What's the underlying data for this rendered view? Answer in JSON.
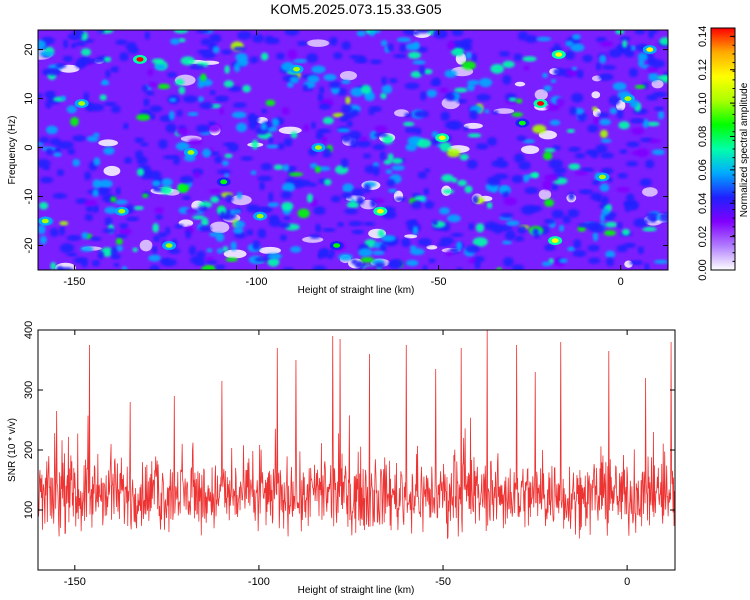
{
  "title": "KOM5.2025.073.15.33.G05",
  "chart_data": [
    {
      "type": "heatmap",
      "xlabel": "Height of straight line (km)",
      "ylabel": "Frequency (Hz)",
      "xlim": [
        -160,
        13
      ],
      "ylim": [
        -25,
        24
      ],
      "x_ticks": [
        -150,
        -100,
        -50,
        0
      ],
      "y_ticks": [
        -20,
        -10,
        0,
        10,
        20
      ],
      "colorbar": {
        "label": "Normalized spectral amplitude",
        "range": [
          0,
          0.145
        ],
        "ticks": [
          "0.00",
          "0.02",
          "0.04",
          "0.06",
          "0.08",
          "0.10",
          "0.12",
          "0.14"
        ],
        "colormap": [
          "#ffffff",
          "#b07cff",
          "#8000ff",
          "#2020ff",
          "#00aaff",
          "#00ffaa",
          "#00ff00",
          "#aaff00",
          "#ffff00",
          "#ffaa00",
          "#ff0000"
        ]
      },
      "hotspots": [
        {
          "x": -132,
          "y": 18,
          "v": 0.14
        },
        {
          "x": -22,
          "y": 9,
          "v": 0.14
        },
        {
          "x": -17,
          "y": 19,
          "v": 0.12
        },
        {
          "x": -148,
          "y": 9,
          "v": 0.1
        },
        {
          "x": -158,
          "y": -15,
          "v": 0.1
        },
        {
          "x": -118,
          "y": -1,
          "v": 0.1
        },
        {
          "x": -109,
          "y": -7,
          "v": 0.08
        },
        {
          "x": -49,
          "y": 2,
          "v": 0.12
        },
        {
          "x": -89,
          "y": 16,
          "v": 0.1
        },
        {
          "x": -83,
          "y": 0,
          "v": 0.1
        },
        {
          "x": -99,
          "y": -14,
          "v": 0.1
        },
        {
          "x": -66,
          "y": -13,
          "v": 0.12
        },
        {
          "x": -18,
          "y": -19,
          "v": 0.12
        },
        {
          "x": -27,
          "y": 5,
          "v": 0.09
        },
        {
          "x": -5,
          "y": -6,
          "v": 0.1
        },
        {
          "x": 2,
          "y": 10,
          "v": 0.1
        },
        {
          "x": -137,
          "y": -13,
          "v": 0.1
        },
        {
          "x": -124,
          "y": -20,
          "v": 0.1
        },
        {
          "x": -78,
          "y": -20,
          "v": 0.09
        },
        {
          "x": 8,
          "y": 20,
          "v": 0.11
        }
      ]
    },
    {
      "type": "line",
      "xlabel": "Height of straight line (km)",
      "ylabel": "SNR (10 * v/v)",
      "xlim": [
        -160,
        13
      ],
      "ylim": [
        0,
        400
      ],
      "x_ticks": [
        -150,
        -100,
        -50,
        0
      ],
      "y_ticks": [
        100,
        200,
        300,
        400
      ],
      "series": [
        {
          "color": "#ee3333",
          "baseline": 125,
          "spread": 65,
          "peaks": [
            {
              "x": -146,
              "y": 375
            },
            {
              "x": -95,
              "y": 370
            },
            {
              "x": -80,
              "y": 390
            },
            {
              "x": -78,
              "y": 385
            },
            {
              "x": -60,
              "y": 375
            },
            {
              "x": -45,
              "y": 370
            },
            {
              "x": -38,
              "y": 400
            },
            {
              "x": -30,
              "y": 375
            },
            {
              "x": -18,
              "y": 380
            },
            {
              "x": -5,
              "y": 365
            },
            {
              "x": 12,
              "y": 380
            },
            {
              "x": -123,
              "y": 290
            },
            {
              "x": -110,
              "y": 315
            },
            {
              "x": -90,
              "y": 350
            },
            {
              "x": -70,
              "y": 360
            },
            {
              "x": -25,
              "y": 330
            },
            {
              "x": 5,
              "y": 320
            },
            {
              "x": -155,
              "y": 265
            },
            {
              "x": -135,
              "y": 280
            },
            {
              "x": -52,
              "y": 335
            }
          ]
        }
      ]
    }
  ]
}
